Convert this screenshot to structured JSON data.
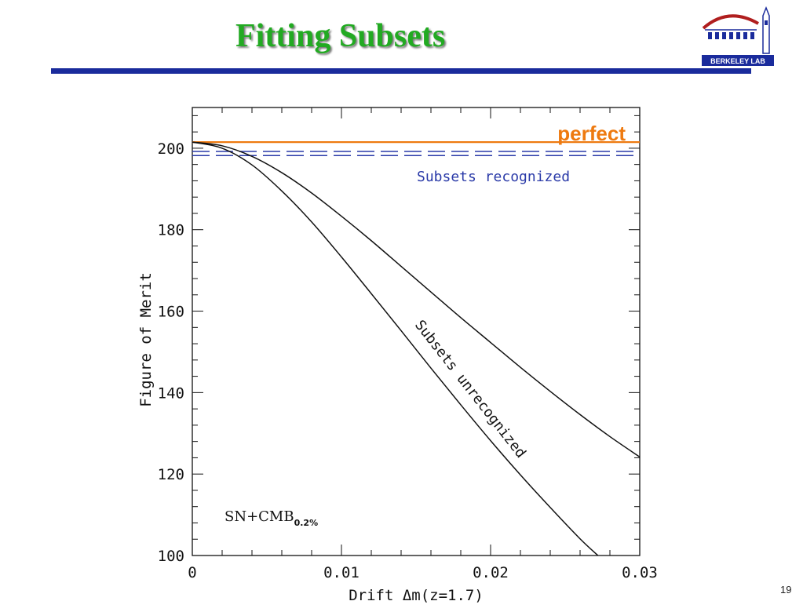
{
  "slide": {
    "title": "Fitting Subsets",
    "page_number": "19",
    "logo_text": "BERKELEY LAB",
    "title_color": "#22aa22",
    "rule_color": "#1a2b9c"
  },
  "chart_data": {
    "type": "line",
    "xlabel": "Drift  Δm(z=1.7)",
    "ylabel": "Figure of Merit",
    "xlim": [
      0,
      0.03
    ],
    "ylim": [
      100,
      210
    ],
    "x_ticks": [
      0,
      0.01,
      0.02,
      0.03
    ],
    "x_tick_labels": [
      "0",
      "0.01",
      "0.02",
      "0.03"
    ],
    "y_ticks": [
      100,
      120,
      140,
      160,
      180,
      200
    ],
    "y_tick_labels": [
      "100",
      "120",
      "140",
      "160",
      "180",
      "200"
    ],
    "grid": false,
    "dataset_label": "SN+CMB",
    "dataset_subscript": "0.2%",
    "series": [
      {
        "name": "perfect",
        "color": "#ee7a10",
        "style": "solid",
        "x": [
          0,
          0.03
        ],
        "y": [
          201.5,
          201.5
        ]
      },
      {
        "name": "Subsets recognized",
        "color": "#2a3aa8",
        "style": "dashed",
        "x": [
          0,
          0.03
        ],
        "y": [
          199.2,
          199.2
        ]
      },
      {
        "name": "",
        "color": "#2a3aa8",
        "style": "dashed",
        "x": [
          0,
          0.03
        ],
        "y": [
          198.2,
          198.2
        ]
      },
      {
        "name": "Subsets unrecognized",
        "color": "#111111",
        "style": "solid",
        "x": [
          0,
          0.002,
          0.004,
          0.006,
          0.008,
          0.01,
          0.012,
          0.014,
          0.016,
          0.018,
          0.02,
          0.022,
          0.024,
          0.026,
          0.028,
          0.03
        ],
        "y": [
          201.5,
          200.6,
          198.0,
          194.0,
          189.0,
          183.3,
          177.3,
          171.0,
          164.7,
          158.4,
          152.3,
          146.2,
          140.3,
          134.6,
          129.2,
          124.2
        ]
      },
      {
        "name": "",
        "color": "#111111",
        "style": "solid",
        "x": [
          0,
          0.002,
          0.004,
          0.006,
          0.008,
          0.01,
          0.012,
          0.014,
          0.016,
          0.018,
          0.02,
          0.022,
          0.024,
          0.026,
          0.0272
        ],
        "y": [
          201.5,
          200.0,
          195.9,
          189.5,
          181.9,
          173.3,
          164.3,
          155.2,
          146.0,
          137.0,
          128.2,
          119.8,
          111.8,
          104.1,
          100.0
        ]
      }
    ],
    "annotations": [
      {
        "text": "perfect",
        "color": "#ee7a10"
      },
      {
        "text": "Subsets recognized",
        "color": "#2a3aa8"
      },
      {
        "text": "Subsets unrecognized",
        "color": "#111111"
      }
    ]
  }
}
